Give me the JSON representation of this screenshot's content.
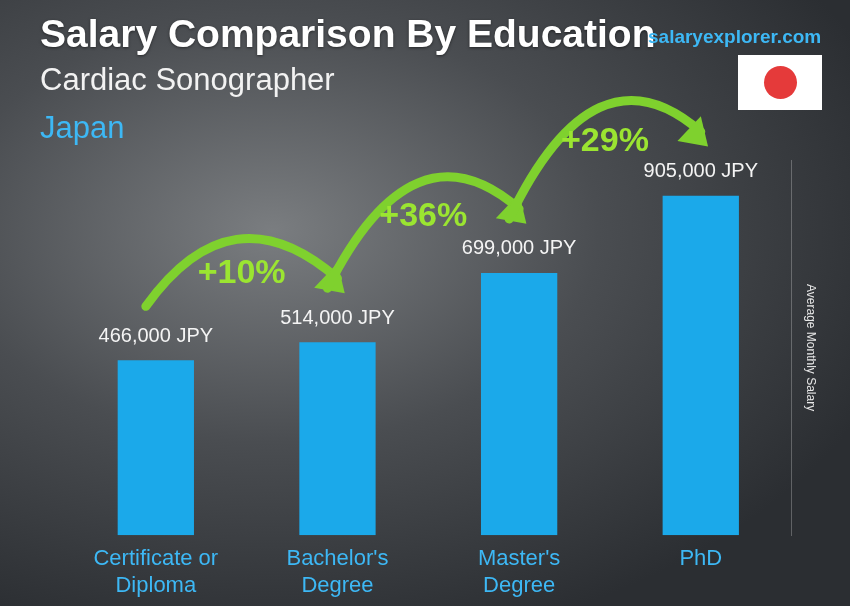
{
  "chart_data": {
    "type": "bar",
    "title": "Salary Comparison By Education",
    "subtitle": "Cardiac Sonographer",
    "location": "Japan",
    "source": "salaryexplorer.com",
    "y_label": "Average Monthly Salary",
    "categories": [
      "Certificate or Diploma",
      "Bachelor's Degree",
      "Master's Degree",
      "PhD"
    ],
    "values": [
      466000,
      514000,
      699000,
      905000
    ],
    "value_labels": [
      "466,000 JPY",
      "514,000 JPY",
      "699,000 JPY",
      "905,000 JPY"
    ],
    "annotations": [
      "+10%",
      "+36%",
      "+29%"
    ],
    "color": "#1ba9ea",
    "ylim": [
      0,
      1000000
    ],
    "yticks": [],
    "grid": false,
    "data_labels": true,
    "tick_labels": "x"
  }
}
